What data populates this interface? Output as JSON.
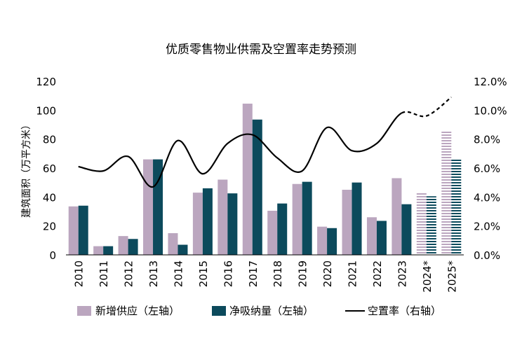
{
  "chart_data": {
    "type": "bar",
    "title": "优质零售物业供需及空置率走势预测",
    "ylabel": "建筑面积（万平方米）",
    "y_ticks": [
      "0",
      "20",
      "40",
      "60",
      "80",
      "100",
      "120"
    ],
    "y2_ticks": [
      "0.0%",
      "2.0%",
      "4.0%",
      "6.0%",
      "8.0%",
      "10.0%",
      "12.0%"
    ],
    "ylim": [
      0,
      120
    ],
    "y2lim": [
      0,
      12
    ],
    "categories": [
      "2010",
      "2011",
      "2012",
      "2013",
      "2014",
      "2015",
      "2016",
      "2017",
      "2018",
      "2019",
      "2020",
      "2021",
      "2022",
      "2023",
      "2024*",
      "2025*"
    ],
    "forecast_from_index": 14,
    "series": [
      {
        "name": "新增供应（左轴）",
        "axis": "left",
        "kind": "bar",
        "color": "#bba6bf",
        "values": [
          33.5,
          6,
          13,
          66,
          15,
          43,
          52,
          104.5,
          30.5,
          49,
          19.5,
          45,
          26,
          53,
          43.5,
          85.5
        ]
      },
      {
        "name": "净吸纳量（左轴）",
        "axis": "left",
        "kind": "bar",
        "color": "#0c4a5c",
        "values": [
          34,
          6,
          11,
          66,
          7,
          46,
          42.5,
          93.5,
          35.5,
          50.5,
          18.5,
          50,
          23.5,
          35,
          40.5,
          66
        ]
      },
      {
        "name": "空置率（右轴）",
        "axis": "right",
        "kind": "line",
        "color": "#000000",
        "values": [
          6.1,
          5.8,
          6.8,
          4.7,
          7.9,
          5.6,
          7.7,
          8.3,
          6.7,
          5.8,
          8.8,
          7.2,
          7.7,
          9.8,
          9.6,
          10.9
        ]
      }
    ],
    "legend_position": "bottom"
  }
}
